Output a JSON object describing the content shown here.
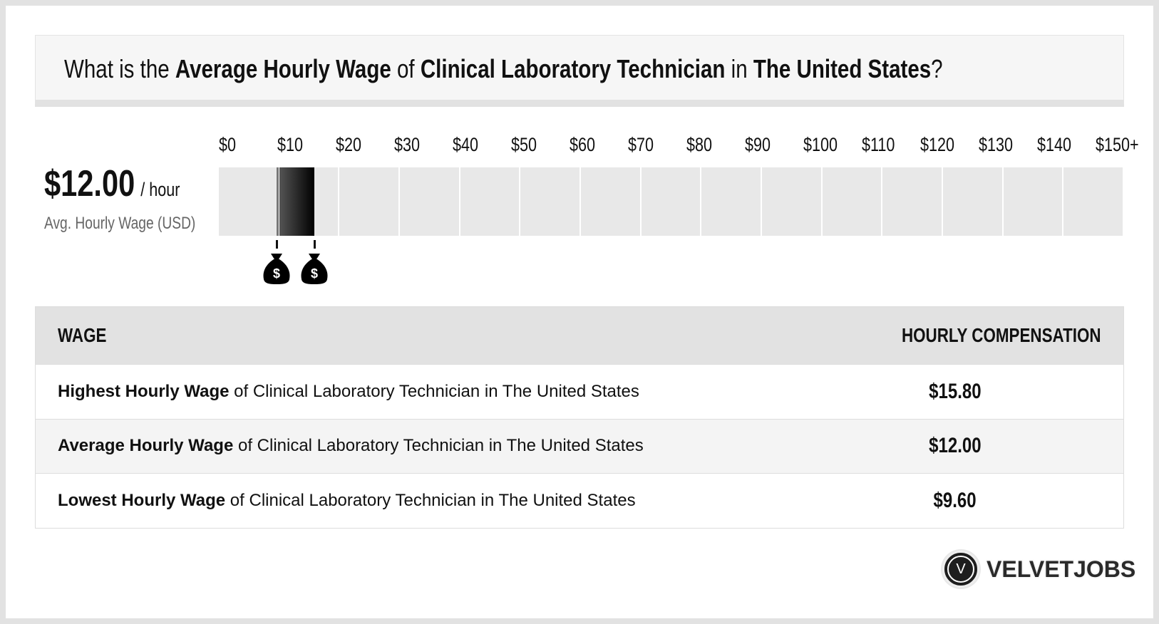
{
  "header": {
    "parts": [
      "What is the ",
      "Average Hourly Wage",
      " of ",
      "Clinical Laboratory Technician",
      " in ",
      "The United States",
      "?"
    ]
  },
  "summary": {
    "amount": "$12.00",
    "unit": "/ hour",
    "label": "Avg. Hourly Wage (USD)"
  },
  "chart_data": {
    "type": "bar",
    "ticks": [
      "$0",
      "$10",
      "$20",
      "$30",
      "$40",
      "$50",
      "$60",
      "$70",
      "$80",
      "$90",
      "$100",
      "$110",
      "$120",
      "$130",
      "$140",
      "$150+"
    ],
    "range": [
      0,
      150
    ],
    "low": 9.6,
    "average": 12.0,
    "high": 15.8,
    "marker_icon": "money-bag-icon"
  },
  "table": {
    "headers": [
      "WAGE",
      "HOURLY COMPENSATION"
    ],
    "rows": [
      {
        "bold": "Highest Hourly Wage",
        "rest": " of Clinical Laboratory Technician in The United States",
        "value": "$15.80"
      },
      {
        "bold": "Average Hourly Wage",
        "rest": " of Clinical Laboratory Technician in The United States",
        "value": "$12.00"
      },
      {
        "bold": "Lowest Hourly Wage",
        "rest": " of Clinical Laboratory Technician in The United States",
        "value": "$9.60"
      }
    ]
  },
  "logo": {
    "mark": "V",
    "text": "VELVETJOBS"
  }
}
